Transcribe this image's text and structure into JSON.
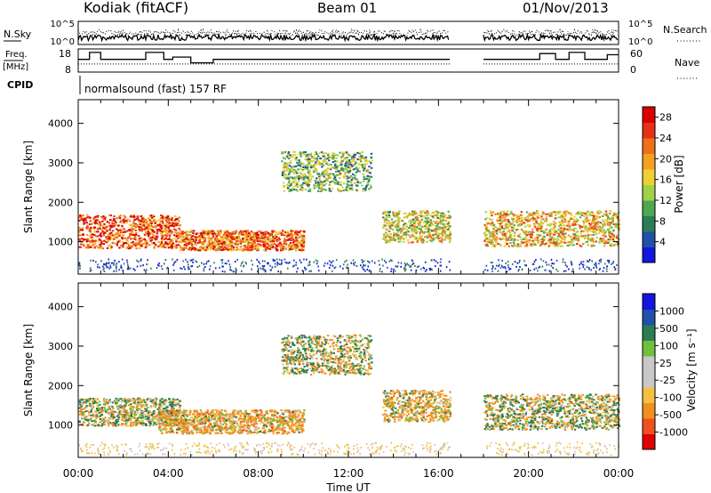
{
  "header": {
    "station": "Kodiak (fitACF)",
    "beam": "Beam 01",
    "date": "01/Nov/2013"
  },
  "info_panels": {
    "nsky_label": "N.Sky",
    "nsearch_label": "N.Search",
    "nsky_ticks": [
      "10^5",
      "10^0"
    ],
    "nsearch_ticks": [
      "10^5",
      "10^0"
    ],
    "freq_label_1": "Freq.",
    "freq_label_2": "[MHz]",
    "freq_ticks": [
      "18",
      "8"
    ],
    "nave_label": "Nave",
    "nave_ticks": [
      "60",
      "0"
    ],
    "cpid_label": "CPID",
    "cpid_value": "normalsound (fast) 157 RF"
  },
  "colors": {
    "power_scale": [
      "#1515e0",
      "#2050a8",
      "#2c7c54",
      "#4ea852",
      "#9fd24a",
      "#f0d030",
      "#f5a020",
      "#f07018",
      "#e83018",
      "#d80000"
    ],
    "velocity_scale": [
      "#e00000",
      "#f05020",
      "#f09020",
      "#f5c040",
      "#c8c8c8",
      "#c8c8c8",
      "#70c040",
      "#2c7c54",
      "#2050a8",
      "#1515e0"
    ]
  },
  "chart_data": [
    {
      "type": "heatmap",
      "panel": "power",
      "ylabel": "Slant Range [km]",
      "y_ticks": [
        "1000",
        "2000",
        "3000",
        "4000"
      ],
      "ylim": [
        180,
        4600
      ],
      "xlim": [
        0,
        24
      ],
      "colorbar_label": "Power [dB]",
      "colorbar_ticks": [
        "4",
        "8",
        "12",
        "16",
        "20",
        "24",
        "28"
      ],
      "colorbar_range": [
        0,
        30
      ],
      "data_gap_hours": [
        16.5,
        18.0
      ],
      "scatter_regions": [
        {
          "t": [
            0.0,
            4.5
          ],
          "range_km": [
            850,
            1700
          ],
          "power_db": 24
        },
        {
          "t": [
            4.5,
            10.0
          ],
          "range_km": [
            800,
            1300
          ],
          "power_db": 22
        },
        {
          "t": [
            9.0,
            13.0
          ],
          "range_km": [
            2300,
            3300
          ],
          "power_db": 12
        },
        {
          "t": [
            13.5,
            16.5
          ],
          "range_km": [
            1000,
            1800
          ],
          "power_db": 16
        },
        {
          "t": [
            18.0,
            24.0
          ],
          "range_km": [
            900,
            1800
          ],
          "power_db": 18
        }
      ]
    },
    {
      "type": "heatmap",
      "panel": "velocity",
      "ylabel": "Slant Range [km]",
      "y_ticks": [
        "1000",
        "2000",
        "3000",
        "4000"
      ],
      "ylim": [
        180,
        4600
      ],
      "xlim": [
        0,
        24
      ],
      "xlabel": "Time UT",
      "x_ticks": [
        "00:00",
        "04:00",
        "08:00",
        "12:00",
        "16:00",
        "20:00",
        "00:00"
      ],
      "colorbar_label": "Velocity [m s⁻¹]",
      "colorbar_ticks": [
        "1000",
        "500",
        "100",
        "25",
        "-25",
        "-100",
        "-500",
        "-1000"
      ],
      "data_gap_hours": [
        16.5,
        18.0
      ],
      "scatter_regions": [
        {
          "t": [
            0.0,
            4.5
          ],
          "range_km": [
            1000,
            1700
          ],
          "velocity_ms": 0
        },
        {
          "t": [
            3.5,
            10.0
          ],
          "range_km": [
            800,
            1400
          ],
          "velocity_ms": -200
        },
        {
          "t": [
            9.0,
            13.0
          ],
          "range_km": [
            2300,
            3300
          ],
          "velocity_ms": 0
        },
        {
          "t": [
            13.5,
            16.5
          ],
          "range_km": [
            1100,
            1900
          ],
          "velocity_ms": -150
        },
        {
          "t": [
            18.0,
            24.0
          ],
          "range_km": [
            900,
            1800
          ],
          "velocity_ms": 0
        }
      ]
    }
  ]
}
